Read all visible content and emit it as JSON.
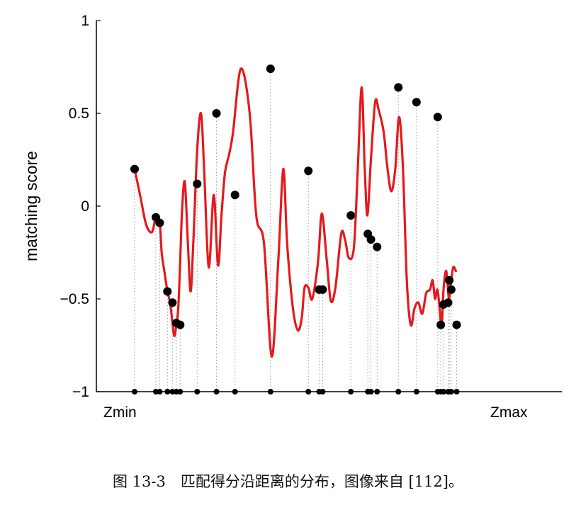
{
  "chart_data": {
    "type": "line",
    "ylabel": "matching score",
    "xlabel": "",
    "ylim": [
      -1,
      1
    ],
    "yticks": [
      {
        "value": 1,
        "label": "1"
      },
      {
        "value": 0.5,
        "label": "0.5"
      },
      {
        "value": 0,
        "label": "0"
      },
      {
        "value": -0.5,
        "label": "−0.5"
      },
      {
        "value": -1,
        "label": "−1"
      }
    ],
    "x_end_labels": {
      "min": "Zmin",
      "max": "Zmax"
    },
    "xlim": [
      0,
      100
    ],
    "grid": false,
    "line_color": "#e41a1c",
    "marker_color": "#000000",
    "curve": {
      "x": [
        0,
        1.5,
        3,
        4.5,
        5.5,
        6.5,
        7,
        7.7,
        8.5,
        9.2,
        9.8,
        10.3,
        10.8,
        11.3,
        11.8,
        12.3,
        13,
        13.8,
        14.5,
        15.2,
        16.2,
        17.2,
        18,
        19.2,
        20.5,
        21.6,
        22.5,
        23.4,
        24.5,
        25.5,
        27.5,
        29.8,
        31.5,
        33.5,
        35.5,
        37.2,
        38.5,
        39.5,
        41,
        42.3,
        43.3,
        44,
        45,
        46,
        47.5,
        48.5,
        49.8,
        50.8,
        52,
        53.5,
        54.5,
        55.5,
        56.8,
        57.8,
        58.8,
        59.6,
        60.3,
        61.2,
        62.3,
        63.2,
        64.5,
        65.5,
        66.5,
        67.5,
        68.5,
        69.5,
        70.5,
        71.5,
        72.5,
        73.5,
        74.5,
        75.5,
        76.5,
        77.2,
        77.8,
        78.4,
        79,
        79.5,
        80,
        80.6,
        81,
        81.4,
        81.9,
        82.5,
        83.2
      ],
      "y": [
        0.2,
        0.05,
        -0.1,
        -0.14,
        -0.06,
        -0.09,
        -0.25,
        -0.35,
        -0.46,
        -0.52,
        -0.63,
        -0.7,
        -0.64,
        -0.55,
        -0.3,
        -0.02,
        0.13,
        -0.2,
        -0.46,
        -0.2,
        0.3,
        0.5,
        0.2,
        -0.33,
        0.06,
        -0.32,
        -0.05,
        0.18,
        0.28,
        0.4,
        0.74,
        0.5,
        -0.05,
        -0.2,
        -0.81,
        -0.3,
        0.2,
        -0.2,
        -0.55,
        -0.67,
        -0.6,
        -0.44,
        -0.44,
        -0.5,
        -0.3,
        -0.04,
        -0.3,
        -0.51,
        -0.44,
        -0.15,
        -0.18,
        -0.28,
        -0.22,
        0.2,
        0.64,
        0.2,
        -0.05,
        0.25,
        0.56,
        0.52,
        0.4,
        0.2,
        0.08,
        0.2,
        0.48,
        0.2,
        -0.4,
        -0.64,
        -0.55,
        -0.52,
        -0.58,
        -0.47,
        -0.45,
        -0.4,
        -0.5,
        -0.45,
        -0.55,
        -0.65,
        -0.45,
        -0.35,
        -0.4,
        -0.5,
        -0.42,
        -0.33,
        -0.35
      ]
    },
    "peaks": {
      "x": [
        0,
        5.5,
        6.5,
        8.5,
        9.8,
        10.8,
        11.8,
        16.2,
        21.2,
        26,
        35.2,
        45,
        47.8,
        48.7,
        56,
        60.4,
        61.2,
        62.8,
        68.3,
        73,
        78.5,
        79.3,
        80,
        81.2,
        81.5,
        82,
        83.4
      ],
      "y": [
        0.2,
        -0.06,
        -0.09,
        -0.46,
        -0.52,
        -0.63,
        -0.64,
        0.12,
        0.5,
        0.06,
        0.74,
        0.19,
        -0.45,
        -0.45,
        -0.05,
        -0.15,
        -0.18,
        -0.22,
        0.64,
        0.56,
        0.48,
        -0.64,
        -0.53,
        -0.52,
        -0.4,
        -0.45,
        -0.64
      ]
    }
  },
  "caption": "图 13-3　匹配得分沿距离的分布，图像来自 [112]。"
}
